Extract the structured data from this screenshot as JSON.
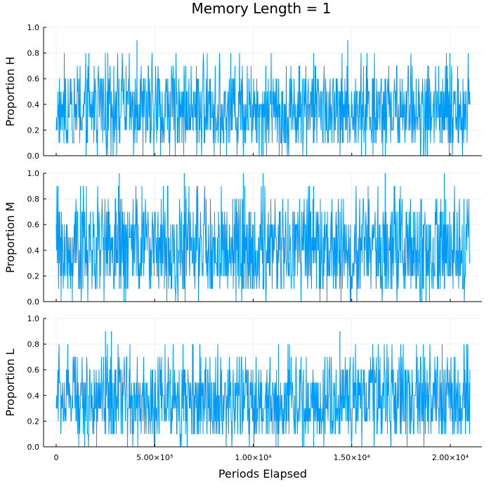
{
  "title": "Memory Length = 1",
  "colors": {
    "series": "#009af9",
    "axis": "#000000",
    "grid": "#e6e6e6"
  },
  "chart_data": [
    {
      "type": "line",
      "title": "Memory Length = 1",
      "xlabel": "",
      "ylabel": "Proportion H",
      "xlim": [
        0,
        21000
      ],
      "ylim": [
        0.0,
        1.0
      ],
      "grid": true,
      "yticks": [
        0.0,
        0.2,
        0.4,
        0.6,
        0.8,
        1.0
      ],
      "ytick_labels": [
        "0.0",
        "0.2",
        "0.4",
        "0.6",
        "0.8",
        "1.0"
      ],
      "series": [
        {
          "n_points": 21000,
          "values_range": [
            0.0,
            0.9
          ],
          "typical_band": [
            0.1,
            0.6
          ],
          "peaks": [
            {
              "x": 4100,
              "y": 0.9
            },
            {
              "x": 14800,
              "y": 0.9
            }
          ]
        }
      ]
    },
    {
      "type": "line",
      "xlabel": "",
      "ylabel": "Proportion M",
      "xlim": [
        0,
        21000
      ],
      "ylim": [
        0.0,
        1.0
      ],
      "grid": true,
      "yticks": [
        0.0,
        0.2,
        0.4,
        0.6,
        0.8,
        1.0
      ],
      "ytick_labels": [
        "0.0",
        "0.2",
        "0.4",
        "0.6",
        "0.8",
        "1.0"
      ],
      "series": [
        {
          "n_points": 21000,
          "values_range": [
            0.0,
            1.0
          ],
          "typical_band": [
            0.1,
            0.7
          ],
          "peaks": [
            {
              "x": 3200,
              "y": 1.0
            },
            {
              "x": 6500,
              "y": 1.0
            },
            {
              "x": 9500,
              "y": 1.0
            },
            {
              "x": 10500,
              "y": 1.0
            },
            {
              "x": 16700,
              "y": 1.0
            },
            {
              "x": 19700,
              "y": 1.0
            }
          ]
        }
      ]
    },
    {
      "type": "line",
      "xlabel": "Periods Elapsed",
      "ylabel": "Proportion L",
      "xlim": [
        0,
        21000
      ],
      "ylim": [
        0.0,
        1.0
      ],
      "grid": true,
      "yticks": [
        0.0,
        0.2,
        0.4,
        0.6,
        0.8,
        1.0
      ],
      "ytick_labels": [
        "0.0",
        "0.2",
        "0.4",
        "0.6",
        "0.8",
        "1.0"
      ],
      "xticks": [
        0,
        5000,
        10000,
        15000,
        20000
      ],
      "xtick_labels": [
        "0",
        "5.00×10³",
        "1.00×10⁴",
        "1.50×10⁴",
        "2.00×10⁴"
      ],
      "series": [
        {
          "n_points": 21000,
          "values_range": [
            0.0,
            0.9
          ],
          "typical_band": [
            0.1,
            0.6
          ],
          "peaks": [
            {
              "x": 2500,
              "y": 0.9
            },
            {
              "x": 2800,
              "y": 0.9
            },
            {
              "x": 14400,
              "y": 0.9
            }
          ]
        }
      ]
    }
  ]
}
